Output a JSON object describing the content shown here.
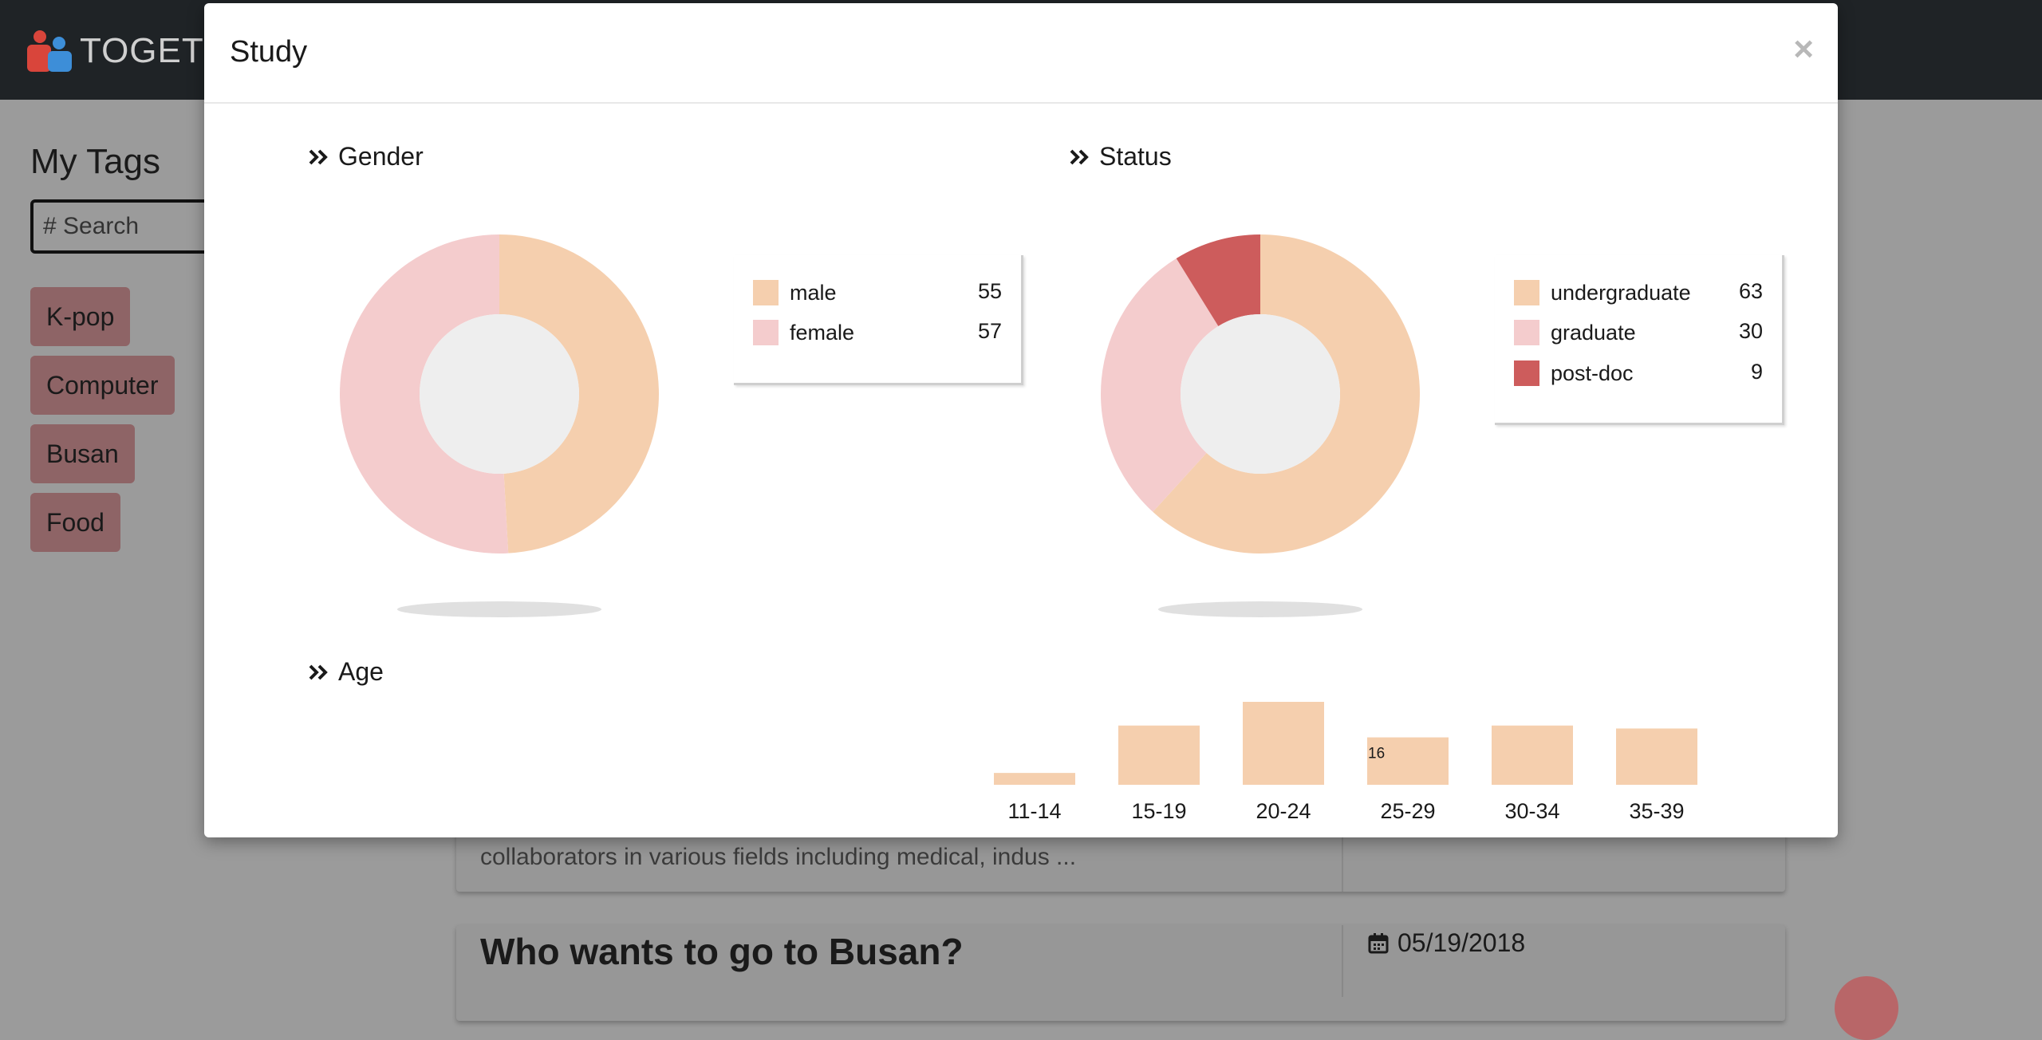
{
  "app": {
    "brand": "TOGET"
  },
  "sidebar": {
    "title": "My Tags",
    "search_placeholder": "# Search",
    "tags": [
      "K-pop",
      "Computer",
      "Busan",
      "Food"
    ]
  },
  "feed": {
    "card1_text": "collaborators in various fields including medical, indus ...",
    "card2_title": "Who wants to go to Busan?",
    "card2_date": "05/19/2018"
  },
  "modal": {
    "title": "Study",
    "close_label": "×"
  },
  "colors": {
    "peach": "#f5cfae",
    "pink": "#f4cccd",
    "red": "#cd5c5c",
    "donut_hole": "#eeeeee"
  },
  "chart_data": [
    {
      "type": "pie",
      "title": "Gender",
      "labels": [
        "male",
        "female"
      ],
      "values": [
        55,
        57
      ],
      "colors": [
        "#f5cfae",
        "#f4cccd"
      ],
      "legend_placement": "right"
    },
    {
      "type": "pie",
      "title": "Status",
      "labels": [
        "undergraduate",
        "graduate",
        "post-doc"
      ],
      "values": [
        63,
        30,
        9
      ],
      "colors": [
        "#f5cfae",
        "#f4cccd",
        "#cd5c5c"
      ],
      "legend_placement": "right"
    },
    {
      "type": "bar",
      "title": "Age",
      "categories": [
        "11-14",
        "15-19",
        "20-24",
        "25-29",
        "30-34",
        "35-39"
      ],
      "values": [
        4,
        20,
        28,
        16,
        20,
        19
      ],
      "visible_data_labels": [
        "",
        "",
        "",
        "16",
        "",
        ""
      ],
      "color": "#f5cfae"
    }
  ]
}
